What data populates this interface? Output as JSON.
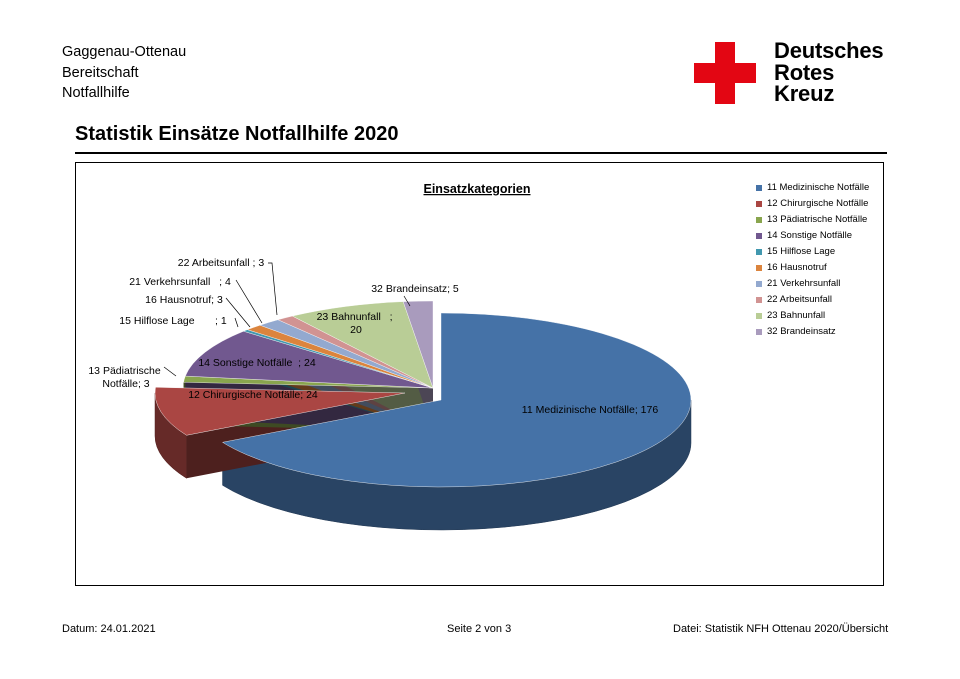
{
  "header": {
    "org_lines": [
      "Gaggenau-Ottenau",
      "Bereitschaft",
      "Notfallhilfe"
    ],
    "logo_words": [
      "Deutsches",
      "Rotes",
      "Kreuz"
    ],
    "logo_color": "#e30613",
    "title": "Statistik Einsätze Notfallhilfe 2020"
  },
  "chart_data": {
    "type": "pie",
    "title": "Einsatzkategorien",
    "legend_position": "right",
    "categories": [
      "11 Medizinische Notfälle",
      "12 Chirurgische Notfälle",
      "13 Pädiatrische Notfälle",
      "14 Sonstige Notfälle",
      "15 Hilflose Lage",
      "16 Hausnotruf",
      "21 Verkehrsunfall",
      "22 Arbeitsunfall",
      "23 Bahnunfall",
      "32 Brandeinsatz"
    ],
    "values": [
      176,
      24,
      3,
      24,
      1,
      3,
      4,
      3,
      20,
      5
    ],
    "colors": [
      "#4572a7",
      "#aa4643",
      "#89a54e",
      "#71588f",
      "#4198af",
      "#db843d",
      "#93a9cf",
      "#d19392",
      "#b9cd96",
      "#a99bbd"
    ],
    "data_labels": [
      "11 Medizinische Notfälle; 176",
      "12 Chirurgische Notfälle; 24",
      "13 Pädiatrische Notfälle; 3",
      "14 Sonstige Notfälle  ; 24",
      "15 Hilflose Lage       ; 1",
      "16 Hausnotruf; 3",
      "21 Verkehrsunfall   ; 4",
      "22 Arbeitsunfall ; 3",
      "23 Bahnunfall   ; 20",
      "32 Brandeinsatz; 5"
    ]
  },
  "footer": {
    "date": "Datum: 24.01.2021",
    "page": "Seite 2 von 3",
    "file": "Datei: Statistik NFH Ottenau 2020/Übersicht"
  }
}
